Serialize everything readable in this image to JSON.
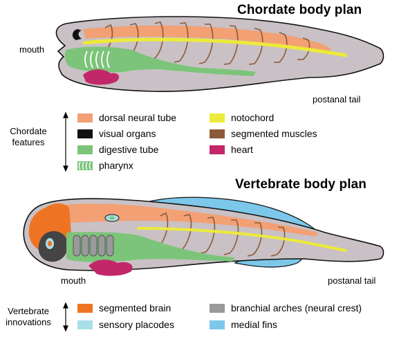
{
  "colors": {
    "body": "#c9c1c5",
    "outline": "#111111",
    "neural_tube": "#f2a074",
    "notochord": "#ecea3a",
    "visual": "#111111",
    "muscle": "#8a5a38",
    "digestive": "#7cc47a",
    "heart": "#c2276a",
    "brain": "#ee7424",
    "placode": "#a8dfe8",
    "arch": "#9a9a9a",
    "fins": "#7cc7ea"
  },
  "chordate": {
    "title": "Chordate body plan",
    "mouth": "mouth",
    "tail": "postanal tail",
    "side_label": "Chordate\nfeatures",
    "legend": [
      {
        "label": "dorsal neural tube",
        "color_key": "neural_tube"
      },
      {
        "label": "notochord",
        "color_key": "notochord"
      },
      {
        "label": "visual organs",
        "color_key": "visual"
      },
      {
        "label": "segmented muscles",
        "color_key": "muscle"
      },
      {
        "label": "digestive tube",
        "color_key": "digestive"
      },
      {
        "label": "heart",
        "color_key": "heart"
      },
      {
        "label": "pharynx",
        "color_key": "pharynx"
      }
    ]
  },
  "vertebrate": {
    "title": "Vertebrate body plan",
    "mouth": "mouth",
    "tail": "postanal tail",
    "side_label": "Vertebrate\ninnovations",
    "legend": [
      {
        "label": "segmented brain",
        "color_key": "brain"
      },
      {
        "label": "branchial arches (neural crest)",
        "color_key": "arch"
      },
      {
        "label": "sensory placodes",
        "color_key": "placode"
      },
      {
        "label": "medial fins",
        "color_key": "fins"
      }
    ]
  }
}
